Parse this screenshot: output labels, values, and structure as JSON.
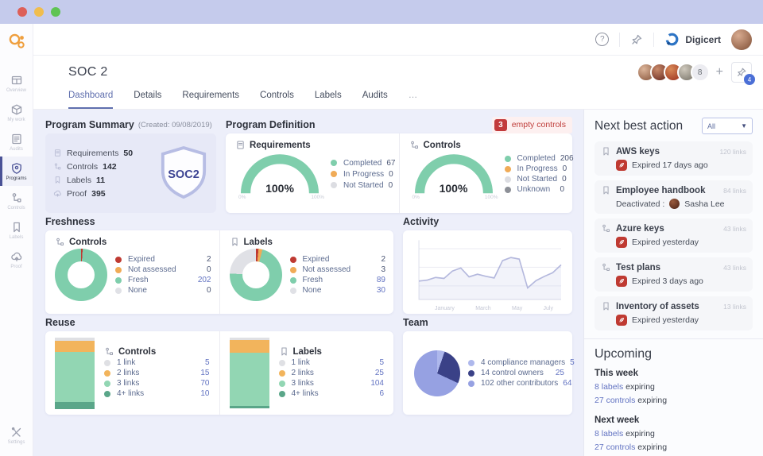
{
  "topbar": {
    "brand": "Digicert"
  },
  "sidebar": {
    "items": [
      {
        "label": "Overview"
      },
      {
        "label": "My work"
      },
      {
        "label": "Audits"
      },
      {
        "label": "Programs"
      },
      {
        "label": "Controls"
      },
      {
        "label": "Labels"
      },
      {
        "label": "Proof"
      }
    ],
    "settings_label": "Settings"
  },
  "header": {
    "title": "SOC 2",
    "tabs": [
      {
        "label": "Dashboard"
      },
      {
        "label": "Details"
      },
      {
        "label": "Requirements"
      },
      {
        "label": "Controls"
      },
      {
        "label": "Labels"
      },
      {
        "label": "Audits"
      }
    ],
    "more_tab": "…",
    "avatar_overflow": "8",
    "add_button": "+",
    "pin_badge": "4"
  },
  "summary": {
    "title": "Program Summary",
    "created": "(Created: 09/08/2019)",
    "rows": [
      {
        "label": "Requirements",
        "value": "50"
      },
      {
        "label": "Controls",
        "value": "142"
      },
      {
        "label": "Labels",
        "value": "11"
      },
      {
        "label": "Proof",
        "value": "395"
      }
    ],
    "shield_text": "SOC2"
  },
  "definition": {
    "title": "Program Definition",
    "alert_count": "3",
    "alert_text": "empty controls"
  },
  "sections": {
    "freshness": "Freshness",
    "activity": "Activity",
    "reuse": "Reuse",
    "team": "Team"
  },
  "next_best_action": {
    "title": "Next best action",
    "filter_value": "All",
    "items": [
      {
        "title": "AWS keys",
        "links": "120 links",
        "status": "Expired 17 days ago"
      },
      {
        "title": "Employee handbook",
        "links": "84 links",
        "status": "Deactivated :",
        "person": "Sasha Lee"
      },
      {
        "title": "Azure keys",
        "links": "43 links",
        "status": "Expired yesterday"
      },
      {
        "title": "Test plans",
        "links": "43 links",
        "status": "Expired 3 days ago"
      },
      {
        "title": "Inventory of assets",
        "links": "13 links",
        "status": "Expired yesterday"
      }
    ]
  },
  "upcoming": {
    "title": "Upcoming",
    "groups": [
      {
        "title": "This week",
        "lines": [
          {
            "link": "8 labels",
            "rest": "expiring"
          },
          {
            "link": "27 controls",
            "rest": "expiring"
          }
        ]
      },
      {
        "title": "Next week",
        "lines": [
          {
            "link": "8 labels",
            "rest": "expiring"
          },
          {
            "link": "27 controls",
            "rest": "expiring"
          }
        ]
      }
    ]
  },
  "chart_data": [
    {
      "type": "gauge",
      "title": "Requirements",
      "percent": 100,
      "center_label": "100%",
      "min_label": "0%",
      "max_label": "100%",
      "series": [
        {
          "label": "Completed",
          "value": 67,
          "color": "#7fceac"
        },
        {
          "label": "In Progress",
          "value": 0,
          "color": "#f0ab57"
        },
        {
          "label": "Not Started",
          "value": 0,
          "color": "#dcdde2"
        }
      ]
    },
    {
      "type": "gauge",
      "title": "Controls",
      "percent": 100,
      "center_label": "100%",
      "min_label": "0%",
      "max_label": "100%",
      "series": [
        {
          "label": "Completed",
          "value": 206,
          "color": "#7fceac"
        },
        {
          "label": "In Progress",
          "value": 0,
          "color": "#f0ab57"
        },
        {
          "label": "Not Started",
          "value": 0,
          "color": "#dcdde2"
        },
        {
          "label": "Unknown",
          "value": 0,
          "color": "#8d9097"
        }
      ]
    },
    {
      "type": "donut",
      "title": "Controls",
      "slices": [
        {
          "label": "Expired",
          "value": 2,
          "color": "#bf3a32"
        },
        {
          "label": "Not assessed",
          "value": 0,
          "color": "#f0ab57"
        },
        {
          "label": "Fresh",
          "value": 202,
          "color": "#7fceac"
        },
        {
          "label": "None",
          "value": 0,
          "color": "#e0e1e6"
        }
      ]
    },
    {
      "type": "donut",
      "title": "Labels",
      "slices": [
        {
          "label": "Expired",
          "value": 2,
          "color": "#bf3a32"
        },
        {
          "label": "Not assessed",
          "value": 3,
          "color": "#f0ab57"
        },
        {
          "label": "Fresh",
          "value": 89,
          "color": "#7fceac"
        },
        {
          "label": "None",
          "value": 30,
          "color": "#e0e1e6"
        }
      ]
    },
    {
      "type": "area",
      "title": "Activity",
      "x_labels": [
        "January",
        "March",
        "May",
        "July"
      ],
      "values": [
        35,
        37,
        42,
        40,
        54,
        60,
        43,
        48,
        44,
        41,
        74,
        80,
        77,
        22,
        36,
        44,
        51,
        66
      ],
      "ylim": [
        0,
        100
      ],
      "line_color": "#b4b8dd",
      "fill_color": "rgba(182,187,226,0.18)"
    },
    {
      "type": "stacked-bar",
      "title": "Controls",
      "slices": [
        {
          "label": "1 link",
          "value": 5,
          "color": "#dfe0e4"
        },
        {
          "label": "2 links",
          "value": 15,
          "color": "#f2b45c"
        },
        {
          "label": "3 links",
          "value": 70,
          "color": "#92d6b3"
        },
        {
          "label": "4+ links",
          "value": 10,
          "color": "#5aa689"
        }
      ]
    },
    {
      "type": "stacked-bar",
      "title": "Labels",
      "slices": [
        {
          "label": "1 link",
          "value": 5,
          "color": "#dfe0e4"
        },
        {
          "label": "2 links",
          "value": 25,
          "color": "#f2b45c"
        },
        {
          "label": "3 links",
          "value": 104,
          "color": "#92d6b3"
        },
        {
          "label": "4+ links",
          "value": 6,
          "color": "#5aa689"
        }
      ]
    },
    {
      "type": "pie",
      "title": "Team",
      "slices": [
        {
          "label": "4 compliance managers",
          "value": 5,
          "color": "#aeb8ec"
        },
        {
          "label": "14 control owners",
          "value": 25,
          "color": "#3a4187"
        },
        {
          "label": "102 other contributors",
          "value": 64,
          "color": "#96a1e2"
        }
      ]
    }
  ]
}
